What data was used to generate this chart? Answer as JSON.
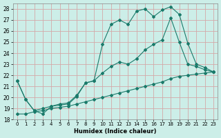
{
  "xlabel": "Humidex (Indice chaleur)",
  "bg_color": "#cceee8",
  "grid_color": "#d4a8a8",
  "line_color": "#1a7a6a",
  "xlim": [
    -0.5,
    23.5
  ],
  "ylim": [
    18,
    28.5
  ],
  "xticks": [
    0,
    1,
    2,
    3,
    4,
    5,
    6,
    7,
    8,
    9,
    10,
    11,
    12,
    13,
    14,
    15,
    16,
    17,
    18,
    19,
    20,
    21,
    22,
    23
  ],
  "yticks": [
    18,
    19,
    20,
    21,
    22,
    23,
    24,
    25,
    26,
    27,
    28
  ],
  "line1_x": [
    0,
    1,
    2,
    3,
    4,
    5,
    6,
    7,
    8,
    9,
    10,
    11,
    12,
    13,
    14,
    15,
    16,
    17,
    18,
    19,
    20,
    21,
    22,
    23
  ],
  "line1_y": [
    21.5,
    19.8,
    18.8,
    18.5,
    19.2,
    19.3,
    19.4,
    20.1,
    21.3,
    21.5,
    24.8,
    26.6,
    27.0,
    26.6,
    27.8,
    28.0,
    27.3,
    27.9,
    28.2,
    27.5,
    24.9,
    23.0,
    22.7,
    22.3
  ],
  "line2_x": [
    0,
    1,
    2,
    3,
    4,
    5,
    6,
    7,
    8,
    9,
    10,
    11,
    12,
    13,
    14,
    15,
    16,
    17,
    18,
    19,
    20,
    21,
    22,
    23
  ],
  "line2_y": [
    21.5,
    19.8,
    18.8,
    19.0,
    19.2,
    19.4,
    19.5,
    20.2,
    21.3,
    21.5,
    22.2,
    22.8,
    23.2,
    23.0,
    23.5,
    24.3,
    24.8,
    25.2,
    27.2,
    25.0,
    23.0,
    22.8,
    22.5,
    22.3
  ],
  "line3_x": [
    0,
    1,
    2,
    3,
    4,
    5,
    6,
    7,
    8,
    9,
    10,
    11,
    12,
    13,
    14,
    15,
    16,
    17,
    18,
    19,
    20,
    21,
    22,
    23
  ],
  "line3_y": [
    18.5,
    18.5,
    18.7,
    18.8,
    19.0,
    19.1,
    19.2,
    19.4,
    19.6,
    19.8,
    20.0,
    20.2,
    20.4,
    20.6,
    20.8,
    21.0,
    21.2,
    21.4,
    21.7,
    21.9,
    22.0,
    22.1,
    22.2,
    22.3
  ]
}
